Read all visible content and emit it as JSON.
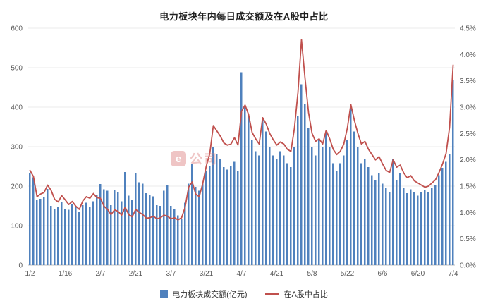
{
  "page": {
    "title": "电力板块年内每日成交额及在A股中占比"
  },
  "watermark": {
    "icon_char": "e",
    "label": "公司"
  },
  "chart_data": {
    "type": "combo",
    "title": "电力板块年内每日成交额及在A股中占比",
    "categories": [
      "1/2",
      "1/3",
      "1/6",
      "1/7",
      "1/8",
      "1/9",
      "1/10",
      "1/13",
      "1/14",
      "1/15",
      "1/16",
      "1/17",
      "1/20",
      "1/21",
      "1/22",
      "1/23",
      "1/24",
      "1/27",
      "2/5",
      "2/6",
      "2/7",
      "2/10",
      "2/11",
      "2/12",
      "2/13",
      "2/14",
      "2/17",
      "2/18",
      "2/19",
      "2/20",
      "2/21",
      "2/24",
      "2/25",
      "2/26",
      "2/27",
      "2/28",
      "3/3",
      "3/4",
      "3/5",
      "3/6",
      "3/7",
      "3/10",
      "3/11",
      "3/12",
      "3/13",
      "3/14",
      "3/17",
      "3/18",
      "3/19",
      "3/20",
      "3/21",
      "3/24",
      "3/25",
      "3/26",
      "3/27",
      "3/28",
      "3/31",
      "4/1",
      "4/2",
      "4/3",
      "4/7",
      "4/8",
      "4/9",
      "4/10",
      "4/11",
      "4/14",
      "4/15",
      "4/16",
      "4/17",
      "4/18",
      "4/21",
      "4/22",
      "4/23",
      "4/24",
      "4/25",
      "4/28",
      "4/29",
      "4/30",
      "5/6",
      "5/7",
      "5/8",
      "5/9",
      "5/12",
      "5/13",
      "5/14",
      "5/15",
      "5/16",
      "5/19",
      "5/20",
      "5/21",
      "5/22",
      "5/23",
      "5/26",
      "5/27",
      "5/28",
      "5/29",
      "5/30",
      "6/3",
      "6/4",
      "6/5",
      "6/6",
      "6/9",
      "6/10",
      "6/11",
      "6/12",
      "6/13",
      "6/16",
      "6/17",
      "6/18",
      "6/19",
      "6/20",
      "6/23",
      "6/24",
      "6/25",
      "6/26",
      "6/27",
      "6/30",
      "7/1",
      "7/2",
      "7/3",
      "7/4"
    ],
    "series": [
      {
        "name": "电力板块成交额(亿元)",
        "type": "bar",
        "axis": "left",
        "values": [
          232,
          222,
          165,
          168,
          172,
          193,
          150,
          142,
          147,
          160,
          143,
          140,
          155,
          148,
          136,
          152,
          158,
          146,
          162,
          178,
          205,
          192,
          188,
          152,
          190,
          186,
          162,
          236,
          176,
          166,
          234,
          210,
          206,
          182,
          178,
          174,
          152,
          150,
          188,
          204,
          150,
          142,
          126,
          118,
          158,
          206,
          256,
          198,
          188,
          212,
          238,
          252,
          298,
          282,
          268,
          248,
          242,
          252,
          262,
          238,
          488,
          402,
          378,
          318,
          288,
          278,
          368,
          338,
          298,
          278,
          268,
          288,
          278,
          258,
          248,
          298,
          378,
          458,
          408,
          348,
          298,
          278,
          318,
          298,
          338,
          298,
          258,
          238,
          258,
          278,
          318,
          398,
          338,
          298,
          258,
          268,
          248,
          228,
          214,
          234,
          206,
          196,
          186,
          268,
          214,
          234,
          196,
          182,
          192,
          186,
          176,
          184,
          190,
          186,
          196,
          202,
          228,
          246,
          262,
          282,
          468
        ]
      },
      {
        "name": "在A股中占比",
        "type": "line",
        "axis": "right",
        "values": [
          1.8,
          1.68,
          1.3,
          1.35,
          1.38,
          1.52,
          1.42,
          1.25,
          1.2,
          1.32,
          1.24,
          1.15,
          1.21,
          1.12,
          1.06,
          1.22,
          1.3,
          1.27,
          1.36,
          1.28,
          1.27,
          1.12,
          1.06,
          0.96,
          1.05,
          1.02,
          0.95,
          1.1,
          0.96,
          0.92,
          1.06,
          1.0,
          0.96,
          0.89,
          0.9,
          0.93,
          0.88,
          0.9,
          0.95,
          0.93,
          0.88,
          0.9,
          0.86,
          0.9,
          1.1,
          1.48,
          1.58,
          1.35,
          1.3,
          1.55,
          1.88,
          2.12,
          2.65,
          2.55,
          2.45,
          2.32,
          2.28,
          2.3,
          2.42,
          2.28,
          2.92,
          3.04,
          2.86,
          2.52,
          2.4,
          2.3,
          2.8,
          2.68,
          2.5,
          2.38,
          2.28,
          2.34,
          2.3,
          2.2,
          2.16,
          2.6,
          3.28,
          4.28,
          3.55,
          2.9,
          2.5,
          2.35,
          2.4,
          2.3,
          2.56,
          2.4,
          2.2,
          2.1,
          2.16,
          2.3,
          2.6,
          3.05,
          2.75,
          2.5,
          2.3,
          2.35,
          2.2,
          2.1,
          2.0,
          2.06,
          1.92,
          1.8,
          1.76,
          2.0,
          1.86,
          1.9,
          1.75,
          1.66,
          1.7,
          1.6,
          1.56,
          1.52,
          1.48,
          1.5,
          1.56,
          1.62,
          1.76,
          1.92,
          2.12,
          2.62,
          3.8
        ]
      }
    ],
    "x_ticks": [
      "1/2",
      "1/16",
      "2/7",
      "2/21",
      "3/7",
      "3/21",
      "4/7",
      "4/21",
      "5/8",
      "5/22",
      "6/6",
      "6/20",
      "7/4"
    ],
    "left_axis": {
      "min": 0,
      "max": 600,
      "step": 100,
      "labels": [
        "0",
        "100",
        "200",
        "300",
        "400",
        "500",
        "600"
      ]
    },
    "right_axis": {
      "min": 0,
      "max": 4.5,
      "step": 0.5,
      "labels": [
        "0.0%",
        "0.5%",
        "1.0%",
        "1.5%",
        "2.0%",
        "2.5%",
        "3.0%",
        "3.5%",
        "4.0%",
        "4.5%"
      ]
    },
    "colors": {
      "bar": "#4f81bd",
      "line": "#c0504d"
    },
    "legend_position": "bottom",
    "grid": "horizontal"
  }
}
